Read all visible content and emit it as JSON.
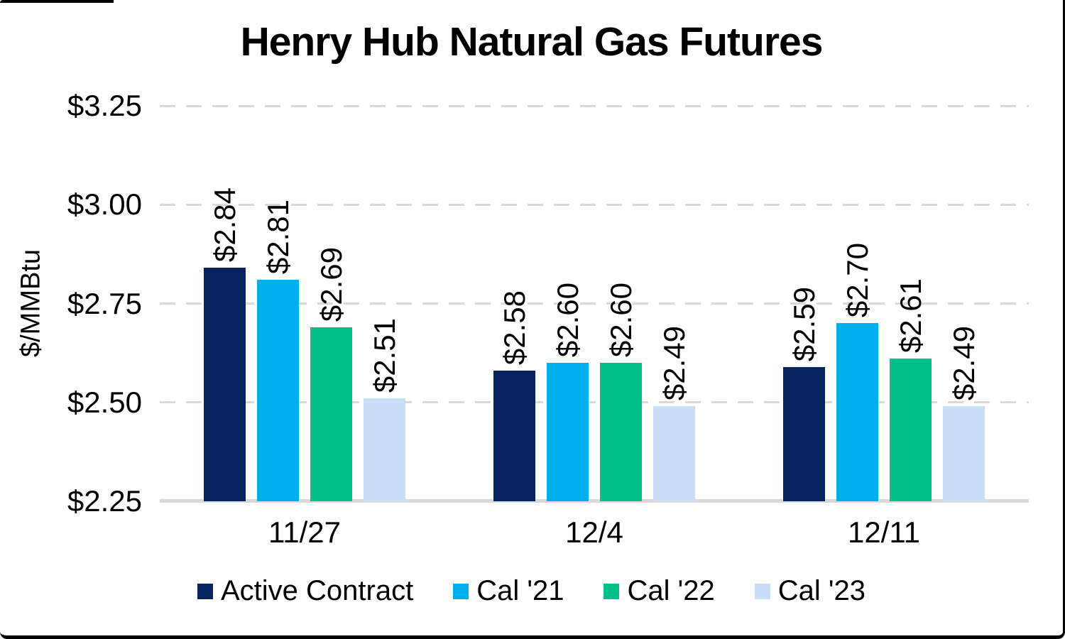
{
  "chart_data": {
    "type": "bar",
    "title": "Henry Hub Natural Gas Futures",
    "ylabel": "$/MMBtu",
    "categories": [
      "11/27",
      "12/4",
      "12/11"
    ],
    "series": [
      {
        "name": "Active Contract",
        "color": "#07235F",
        "values": [
          2.84,
          2.58,
          2.59
        ],
        "labels": [
          "$2.84",
          "$2.58",
          "$2.59"
        ]
      },
      {
        "name": "Cal '21",
        "color": "#00AEEF",
        "values": [
          2.81,
          2.6,
          2.7
        ],
        "labels": [
          "$2.81",
          "$2.60",
          "$2.70"
        ]
      },
      {
        "name": "Cal '22",
        "color": "#00BF8B",
        "values": [
          2.69,
          2.6,
          2.61
        ],
        "labels": [
          "$2.69",
          "$2.60",
          "$2.61"
        ]
      },
      {
        "name": "Cal '23",
        "color": "#C7DEF4",
        "values": [
          2.51,
          2.49,
          2.49
        ],
        "labels": [
          "$2.51",
          "$2.49",
          "$2.49"
        ]
      }
    ],
    "ylim": [
      2.25,
      3.25
    ],
    "yticks": [
      {
        "value": 2.25,
        "label": "$2.25"
      },
      {
        "value": 2.5,
        "label": "$2.50"
      },
      {
        "value": 2.75,
        "label": "$2.75"
      },
      {
        "value": 3.0,
        "label": "$3.00"
      },
      {
        "value": 3.25,
        "label": "$3.25"
      }
    ],
    "grid": "horizontal-dashed",
    "gridline_color": "#D9D9D9",
    "legend_position": "bottom",
    "data_label_orientation": "rotated-90"
  }
}
